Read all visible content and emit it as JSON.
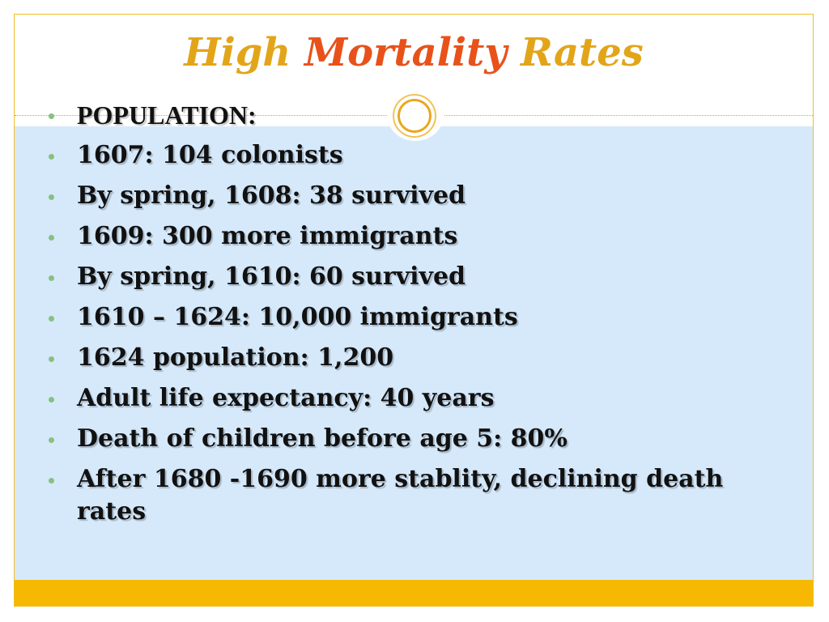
{
  "slide": {
    "title": {
      "word1": "High",
      "word2": "Mortality",
      "word3": "Rates"
    },
    "bullets": [
      "POPULATION:",
      "1607: 104 colonists",
      "By spring, 1608: 38 survived",
      "1609: 300 more immigrants",
      "By spring, 1610: 60 survived",
      "1610 – 1624: 10,000 immigrants",
      "1624 population: 1,200",
      "Adult life expectancy: 40 years",
      "Death of children before age 5:  80%",
      "After 1680 -1690 more stablity, declining death rates"
    ]
  },
  "colors": {
    "title_gold": "#e2a51a",
    "title_orange": "#e8521a",
    "body_background": "#d5e9fb",
    "footer_bar": "#f6b800",
    "bullet_dot": "#86c17f"
  }
}
